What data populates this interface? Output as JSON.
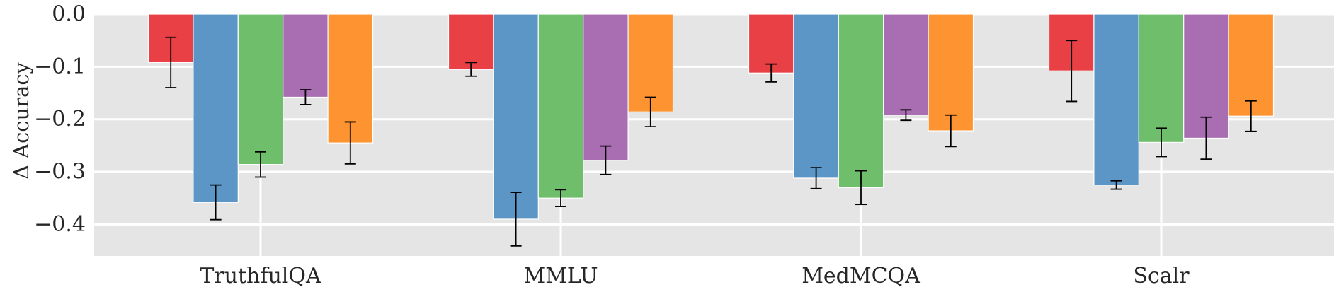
{
  "chart_data": {
    "type": "bar",
    "title": "",
    "xlabel": "",
    "ylabel": "Δ Accuracy",
    "ylim": [
      -0.46,
      0.0
    ],
    "yticks": [
      0.0,
      -0.1,
      -0.2,
      -0.3,
      -0.4
    ],
    "ytick_labels": [
      "0.0",
      "−0.1",
      "−0.2",
      "−0.3",
      "−0.4"
    ],
    "grid": true,
    "legend": "none",
    "categories": [
      "TruthfulQA",
      "MMLU",
      "MedMCQA",
      "Scalr"
    ],
    "series": [
      {
        "color": "#e84045",
        "values": [
          -0.092,
          -0.105,
          -0.112,
          -0.108
        ],
        "errors": [
          0.048,
          0.013,
          0.017,
          0.058
        ]
      },
      {
        "color": "#5b96c7",
        "values": [
          -0.358,
          -0.39,
          -0.312,
          -0.325
        ],
        "errors": [
          0.033,
          0.051,
          0.02,
          0.008
        ]
      },
      {
        "color": "#6fbe6b",
        "values": [
          -0.286,
          -0.35,
          -0.33,
          -0.244
        ],
        "errors": [
          0.024,
          0.016,
          0.032,
          0.027
        ]
      },
      {
        "color": "#a96db2",
        "values": [
          -0.158,
          -0.278,
          -0.192,
          -0.236
        ],
        "errors": [
          0.014,
          0.027,
          0.01,
          0.04
        ]
      },
      {
        "color": "#fd9331",
        "values": [
          -0.245,
          -0.186,
          -0.222,
          -0.194
        ],
        "errors": [
          0.04,
          0.028,
          0.03,
          0.029
        ]
      }
    ]
  },
  "colors": {
    "plot_background": "#e5e5e5",
    "grid": "#ffffff",
    "error_bars": "#000000"
  }
}
